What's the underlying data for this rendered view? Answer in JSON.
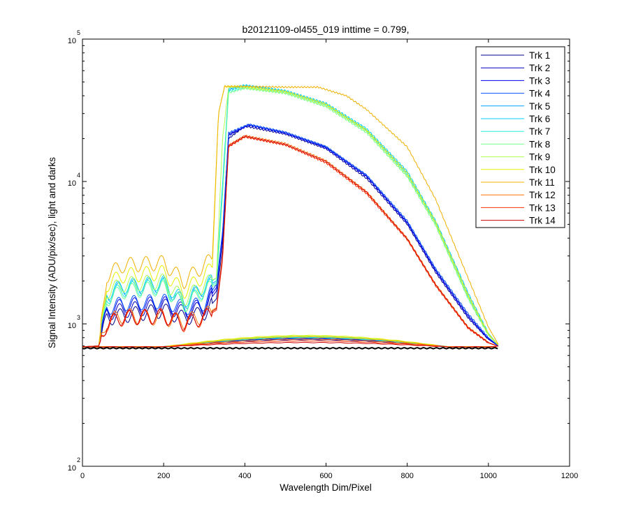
{
  "chart_data": {
    "type": "line",
    "title": "b20121109-ol455_019 inttime = 0.799,",
    "xlabel": "Wavelength Dim/Pixel",
    "ylabel": "Signal Intensity (ADU/pix/sec), light and darks",
    "xlim": [
      0,
      1200
    ],
    "ylim": [
      100,
      100000
    ],
    "yscale": "log",
    "grid": false,
    "legend_position": "top-right",
    "x_ticks": [
      {
        "value": 0,
        "label": "0"
      },
      {
        "value": 200,
        "label": "200"
      },
      {
        "value": 400,
        "label": "400"
      },
      {
        "value": 600,
        "label": "600"
      },
      {
        "value": 800,
        "label": "800"
      },
      {
        "value": 1000,
        "label": "1000"
      },
      {
        "value": 1200,
        "label": "1200"
      }
    ],
    "y_ticks": [
      {
        "value": 100,
        "base": "10",
        "exp": "2"
      },
      {
        "value": 1000,
        "base": "10",
        "exp": "3"
      },
      {
        "value": 10000,
        "base": "10",
        "exp": "4"
      },
      {
        "value": 100000,
        "base": "10",
        "exp": "5"
      }
    ],
    "series": [
      {
        "name": "Trk 1",
        "color": "#00008F",
        "light": [
          [
            0,
            690
          ],
          [
            40,
            700
          ],
          [
            60,
            1100
          ],
          [
            100,
            1150
          ],
          [
            200,
            1250
          ],
          [
            250,
            1100
          ],
          [
            300,
            1200
          ],
          [
            330,
            1500
          ],
          [
            345,
            3500
          ],
          [
            360,
            20000
          ],
          [
            400,
            24500
          ],
          [
            500,
            21500
          ],
          [
            600,
            17000
          ],
          [
            700,
            10500
          ],
          [
            800,
            5000
          ],
          [
            870,
            2300
          ],
          [
            950,
            1100
          ],
          [
            1000,
            780
          ],
          [
            1024,
            700
          ]
        ],
        "dark": 800
      },
      {
        "name": "Trk 2",
        "color": "#0000BF",
        "light": [
          [
            0,
            690
          ],
          [
            40,
            700
          ],
          [
            60,
            1200
          ],
          [
            100,
            1250
          ],
          [
            200,
            1350
          ],
          [
            250,
            1200
          ],
          [
            300,
            1300
          ],
          [
            330,
            1700
          ],
          [
            345,
            4000
          ],
          [
            360,
            21000
          ],
          [
            410,
            25000
          ],
          [
            500,
            22000
          ],
          [
            600,
            17500
          ],
          [
            700,
            11000
          ],
          [
            800,
            5200
          ],
          [
            870,
            2400
          ],
          [
            950,
            1150
          ],
          [
            1000,
            790
          ],
          [
            1024,
            700
          ]
        ],
        "dark": 790
      },
      {
        "name": "Trk 3",
        "color": "#0000EF",
        "light": [
          [
            0,
            690
          ],
          [
            40,
            700
          ],
          [
            60,
            1250
          ],
          [
            100,
            1350
          ],
          [
            200,
            1400
          ],
          [
            250,
            1250
          ],
          [
            300,
            1350
          ],
          [
            330,
            1800
          ],
          [
            345,
            4200
          ],
          [
            360,
            21500
          ],
          [
            410,
            24800
          ],
          [
            500,
            21800
          ],
          [
            600,
            17200
          ],
          [
            700,
            10800
          ],
          [
            800,
            5100
          ],
          [
            870,
            2350
          ],
          [
            950,
            1120
          ],
          [
            1000,
            780
          ],
          [
            1024,
            700
          ]
        ],
        "dark": 780
      },
      {
        "name": "Trk 4",
        "color": "#0050FF",
        "light": [
          [
            0,
            690
          ],
          [
            40,
            700
          ],
          [
            60,
            1300
          ],
          [
            100,
            1400
          ],
          [
            200,
            1450
          ],
          [
            250,
            1300
          ],
          [
            300,
            1400
          ],
          [
            330,
            1900
          ],
          [
            345,
            4400
          ],
          [
            360,
            22000
          ],
          [
            410,
            25200
          ],
          [
            500,
            22200
          ],
          [
            600,
            17600
          ],
          [
            700,
            11100
          ],
          [
            800,
            5300
          ],
          [
            870,
            2450
          ],
          [
            950,
            1180
          ],
          [
            1000,
            800
          ],
          [
            1024,
            705
          ]
        ],
        "dark": 775
      },
      {
        "name": "Trk 5",
        "color": "#00A0FF",
        "light": [
          [
            0,
            690
          ],
          [
            40,
            700
          ],
          [
            60,
            1600
          ],
          [
            100,
            1800
          ],
          [
            200,
            1900
          ],
          [
            250,
            1400
          ],
          [
            300,
            1800
          ],
          [
            330,
            2000
          ],
          [
            345,
            9000
          ],
          [
            360,
            44000
          ],
          [
            400,
            47000
          ],
          [
            500,
            43000
          ],
          [
            600,
            35000
          ],
          [
            700,
            23000
          ],
          [
            800,
            11500
          ],
          [
            870,
            5200
          ],
          [
            950,
            1600
          ],
          [
            1000,
            850
          ],
          [
            1024,
            710
          ]
        ],
        "dark": 810
      },
      {
        "name": "Trk 6",
        "color": "#00D0FF",
        "light": [
          [
            0,
            690
          ],
          [
            40,
            700
          ],
          [
            60,
            1650
          ],
          [
            100,
            1850
          ],
          [
            200,
            1950
          ],
          [
            250,
            1450
          ],
          [
            300,
            1850
          ],
          [
            330,
            2100
          ],
          [
            345,
            9500
          ],
          [
            360,
            45000
          ],
          [
            400,
            47500
          ],
          [
            500,
            43500
          ],
          [
            600,
            35500
          ],
          [
            700,
            23500
          ],
          [
            800,
            11800
          ],
          [
            870,
            5300
          ],
          [
            950,
            1650
          ],
          [
            1000,
            860
          ],
          [
            1024,
            710
          ]
        ],
        "dark": 805
      },
      {
        "name": "Trk 7",
        "color": "#20F0E0",
        "light": [
          [
            0,
            690
          ],
          [
            40,
            700
          ],
          [
            60,
            1550
          ],
          [
            100,
            1750
          ],
          [
            200,
            1850
          ],
          [
            250,
            1350
          ],
          [
            300,
            1750
          ],
          [
            330,
            1950
          ],
          [
            345,
            8500
          ],
          [
            360,
            43000
          ],
          [
            400,
            46000
          ],
          [
            500,
            42500
          ],
          [
            600,
            34500
          ],
          [
            700,
            22800
          ],
          [
            800,
            11200
          ],
          [
            870,
            5100
          ],
          [
            950,
            1550
          ],
          [
            1000,
            840
          ],
          [
            1024,
            710
          ]
        ],
        "dark": 800
      },
      {
        "name": "Trk 8",
        "color": "#70FF90",
        "light": [
          [
            0,
            690
          ],
          [
            40,
            700
          ],
          [
            60,
            1500
          ],
          [
            100,
            1700
          ],
          [
            200,
            1800
          ],
          [
            250,
            1350
          ],
          [
            300,
            1700
          ],
          [
            330,
            1900
          ],
          [
            345,
            8000
          ],
          [
            360,
            42000
          ],
          [
            400,
            45000
          ],
          [
            500,
            41500
          ],
          [
            600,
            33500
          ],
          [
            700,
            22000
          ],
          [
            800,
            10800
          ],
          [
            870,
            4900
          ],
          [
            950,
            1500
          ],
          [
            1000,
            830
          ],
          [
            1024,
            710
          ]
        ],
        "dark": 820
      },
      {
        "name": "Trk 9",
        "color": "#B0FF50",
        "light": [
          [
            0,
            690
          ],
          [
            40,
            700
          ],
          [
            60,
            1700
          ],
          [
            100,
            1900
          ],
          [
            200,
            2000
          ],
          [
            250,
            1500
          ],
          [
            300,
            1900
          ],
          [
            330,
            2100
          ],
          [
            345,
            20000
          ],
          [
            360,
            46000
          ],
          [
            400,
            45500
          ],
          [
            500,
            42000
          ],
          [
            600,
            34000
          ],
          [
            700,
            22500
          ],
          [
            800,
            11000
          ],
          [
            870,
            5000
          ],
          [
            950,
            1550
          ],
          [
            1000,
            840
          ],
          [
            1024,
            710
          ]
        ],
        "dark": 815
      },
      {
        "name": "Trk 10",
        "color": "#E8F000",
        "light": [
          [
            0,
            690
          ],
          [
            40,
            700
          ],
          [
            60,
            1900
          ],
          [
            100,
            2200
          ],
          [
            200,
            2300
          ],
          [
            250,
            1700
          ],
          [
            300,
            2200
          ],
          [
            320,
            2500
          ],
          [
            335,
            30000
          ],
          [
            350,
            46500
          ],
          [
            400,
            46500
          ],
          [
            500,
            43000
          ],
          [
            600,
            35000
          ],
          [
            700,
            23000
          ],
          [
            800,
            11500
          ],
          [
            870,
            5200
          ],
          [
            950,
            1600
          ],
          [
            1000,
            850
          ],
          [
            1024,
            710
          ]
        ],
        "dark": 830
      },
      {
        "name": "Trk 11",
        "color": "#F0B000",
        "light": [
          [
            0,
            690
          ],
          [
            40,
            700
          ],
          [
            60,
            2200
          ],
          [
            100,
            2600
          ],
          [
            200,
            2700
          ],
          [
            250,
            2000
          ],
          [
            300,
            2600
          ],
          [
            320,
            2900
          ],
          [
            335,
            30000
          ],
          [
            350,
            46500
          ],
          [
            400,
            46500
          ],
          [
            500,
            46000
          ],
          [
            580,
            46000
          ],
          [
            650,
            40000
          ],
          [
            700,
            32000
          ],
          [
            800,
            17500
          ],
          [
            870,
            7500
          ],
          [
            950,
            2100
          ],
          [
            1000,
            950
          ],
          [
            1024,
            720
          ]
        ],
        "dark": 810
      },
      {
        "name": "Trk 12",
        "color": "#FF7000",
        "light": [
          [
            0,
            690
          ],
          [
            40,
            700
          ],
          [
            60,
            1050
          ],
          [
            100,
            1150
          ],
          [
            200,
            1100
          ],
          [
            250,
            1050
          ],
          [
            300,
            1150
          ],
          [
            330,
            1300
          ],
          [
            345,
            3000
          ],
          [
            360,
            18000
          ],
          [
            400,
            21000
          ],
          [
            500,
            18500
          ],
          [
            600,
            14000
          ],
          [
            700,
            8500
          ],
          [
            800,
            4000
          ],
          [
            870,
            1900
          ],
          [
            950,
            950
          ],
          [
            1000,
            740
          ],
          [
            1024,
            695
          ]
        ],
        "dark": 780
      },
      {
        "name": "Trk 13",
        "color": "#FF3000",
        "light": [
          [
            0,
            690
          ],
          [
            40,
            700
          ],
          [
            60,
            1000
          ],
          [
            100,
            1100
          ],
          [
            200,
            1150
          ],
          [
            250,
            1000
          ],
          [
            300,
            1100
          ],
          [
            330,
            1250
          ],
          [
            345,
            2800
          ],
          [
            360,
            17500
          ],
          [
            400,
            20500
          ],
          [
            500,
            18000
          ],
          [
            600,
            13500
          ],
          [
            700,
            8200
          ],
          [
            800,
            3900
          ],
          [
            870,
            1850
          ],
          [
            950,
            930
          ],
          [
            1000,
            735
          ],
          [
            1024,
            695
          ]
        ],
        "dark": 760
      },
      {
        "name": "Trk 14",
        "color": "#CF0000",
        "light": [
          [
            0,
            690
          ],
          [
            40,
            700
          ],
          [
            60,
            1020
          ],
          [
            100,
            1120
          ],
          [
            200,
            1130
          ],
          [
            250,
            1020
          ],
          [
            300,
            1120
          ],
          [
            330,
            1280
          ],
          [
            345,
            2900
          ],
          [
            360,
            17800
          ],
          [
            400,
            20800
          ],
          [
            500,
            18200
          ],
          [
            600,
            13800
          ],
          [
            700,
            8400
          ],
          [
            800,
            3950
          ],
          [
            870,
            1880
          ],
          [
            950,
            940
          ],
          [
            1000,
            738
          ],
          [
            1024,
            696
          ]
        ],
        "dark": 740
      }
    ]
  }
}
